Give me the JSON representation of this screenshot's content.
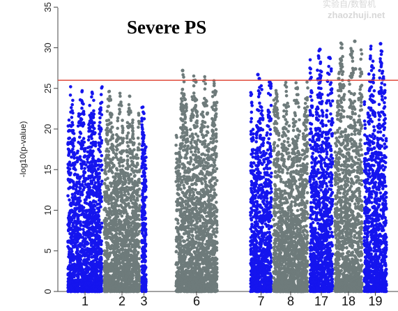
{
  "watermark": {
    "line1": "实验自/数智机",
    "line2": "zhaozhuji.net"
  },
  "chart_data": {
    "type": "scatter",
    "title": "Severe PS",
    "ylabel": "-log10(p-value)",
    "ylim": [
      0,
      35
    ],
    "yticks": [
      0,
      5,
      10,
      15,
      20,
      25,
      30,
      35
    ],
    "threshold": 26,
    "threshold_color": "#e04a3a",
    "colors": {
      "blue": "#1515ee",
      "gray": "#6e7b7b"
    },
    "x_tick_labels": [
      "1",
      "2",
      "3",
      "6",
      "7",
      "8",
      "17",
      "18",
      "19"
    ],
    "chromosomes": [
      {
        "label": "1",
        "x_start": 0,
        "x_end": 52,
        "color": "blue",
        "peak": 25.5
      },
      {
        "label": "2",
        "x_start": 52,
        "x_end": 106,
        "color": "gray",
        "peak": 24.8
      },
      {
        "label": "3",
        "x_start": 106,
        "x_end": 115,
        "color": "blue",
        "peak": 23.0
      },
      {
        "label": "6",
        "x_start": 155,
        "x_end": 217,
        "color": "gray",
        "peak": 27.2
      },
      {
        "label": "7",
        "x_start": 262,
        "x_end": 295,
        "color": "blue",
        "peak": 26.7
      },
      {
        "label": "8",
        "x_start": 295,
        "x_end": 347,
        "color": "gray",
        "peak": 25.8
      },
      {
        "label": "17",
        "x_start": 347,
        "x_end": 383,
        "color": "blue",
        "peak": 29.8
      },
      {
        "label": "18",
        "x_start": 383,
        "x_end": 425,
        "color": "gray",
        "peak": 30.8
      },
      {
        "label": "19",
        "x_start": 425,
        "x_end": 460,
        "color": "blue",
        "peak": 30.5
      }
    ],
    "top_hits": [
      {
        "chr": "6",
        "x": 166,
        "y": 27.2
      },
      {
        "chr": "6",
        "x": 185,
        "y": 25.8
      },
      {
        "chr": "7",
        "x": 274,
        "y": 26.7
      },
      {
        "chr": "7",
        "x": 276,
        "y": 26.2
      },
      {
        "chr": "17",
        "x": 363,
        "y": 29.8
      },
      {
        "chr": "18",
        "x": 390,
        "y": 26.2
      },
      {
        "chr": "18",
        "x": 413,
        "y": 30.8
      },
      {
        "chr": "18",
        "x": 414,
        "y": 27.4
      },
      {
        "chr": "19",
        "x": 439,
        "y": 26.0
      },
      {
        "chr": "19",
        "x": 450,
        "y": 30.5
      }
    ]
  }
}
